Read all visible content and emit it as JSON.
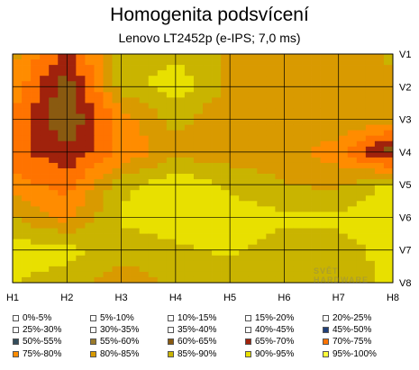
{
  "chart_data": {
    "type": "heatmap",
    "title": "Homogenita podsvícení",
    "subtitle": "Lenovo  LT2452p (e-IPS; 7,0 ms)",
    "x_labels": [
      "H1",
      "H2",
      "H3",
      "H4",
      "H5",
      "H6",
      "H7",
      "H8"
    ],
    "y_labels": [
      "V1",
      "V2",
      "V3",
      "V4",
      "V5",
      "V6",
      "V7",
      "V8"
    ],
    "grid": true,
    "legend_position": "bottom",
    "values_percent": [
      [
        82,
        68,
        88,
        89,
        84,
        82,
        80,
        86
      ],
      [
        78,
        62,
        87,
        93,
        84,
        82,
        83,
        84
      ],
      [
        74,
        60,
        77,
        87,
        80,
        81,
        84,
        82
      ],
      [
        72,
        66,
        76,
        83,
        82,
        82,
        77,
        62
      ],
      [
        77,
        73,
        88,
        94,
        89,
        85,
        84,
        92
      ],
      [
        86,
        78,
        91,
        93,
        93,
        91,
        91,
        95
      ],
      [
        92,
        92,
        87,
        89,
        91,
        88,
        88,
        92
      ],
      [
        90,
        88,
        82,
        86,
        87,
        86,
        87,
        91
      ]
    ],
    "legend": [
      {
        "label": "0%-5%",
        "color": "#ffffff"
      },
      {
        "label": "5%-10%",
        "color": "#ffffff"
      },
      {
        "label": "10%-15%",
        "color": "#ffffff"
      },
      {
        "label": "15%-20%",
        "color": "#ffffff"
      },
      {
        "label": "20%-25%",
        "color": "#ffffff"
      },
      {
        "label": "25%-30%",
        "color": "#ffffff"
      },
      {
        "label": "30%-35%",
        "color": "#ffffff"
      },
      {
        "label": "35%-40%",
        "color": "#ffffff"
      },
      {
        "label": "40%-45%",
        "color": "#ffffff"
      },
      {
        "label": "45%-50%",
        "color": "#1f3f7a"
      },
      {
        "label": "50%-55%",
        "color": "#334d5c"
      },
      {
        "label": "55%-60%",
        "color": "#9a7a2a"
      },
      {
        "label": "60%-65%",
        "color": "#8a5a10"
      },
      {
        "label": "65%-70%",
        "color": "#a0220c"
      },
      {
        "label": "70%-75%",
        "color": "#ff7300"
      },
      {
        "label": "75%-80%",
        "color": "#ff8c00"
      },
      {
        "label": "80%-85%",
        "color": "#d99a00"
      },
      {
        "label": "85%-90%",
        "color": "#c9b400"
      },
      {
        "label": "90%-95%",
        "color": "#e8e000"
      },
      {
        "label": "95%-100%",
        "color": "#ffff3a"
      }
    ]
  },
  "watermark": {
    "line1": "SVĚT",
    "line2": "HARDWARE"
  }
}
